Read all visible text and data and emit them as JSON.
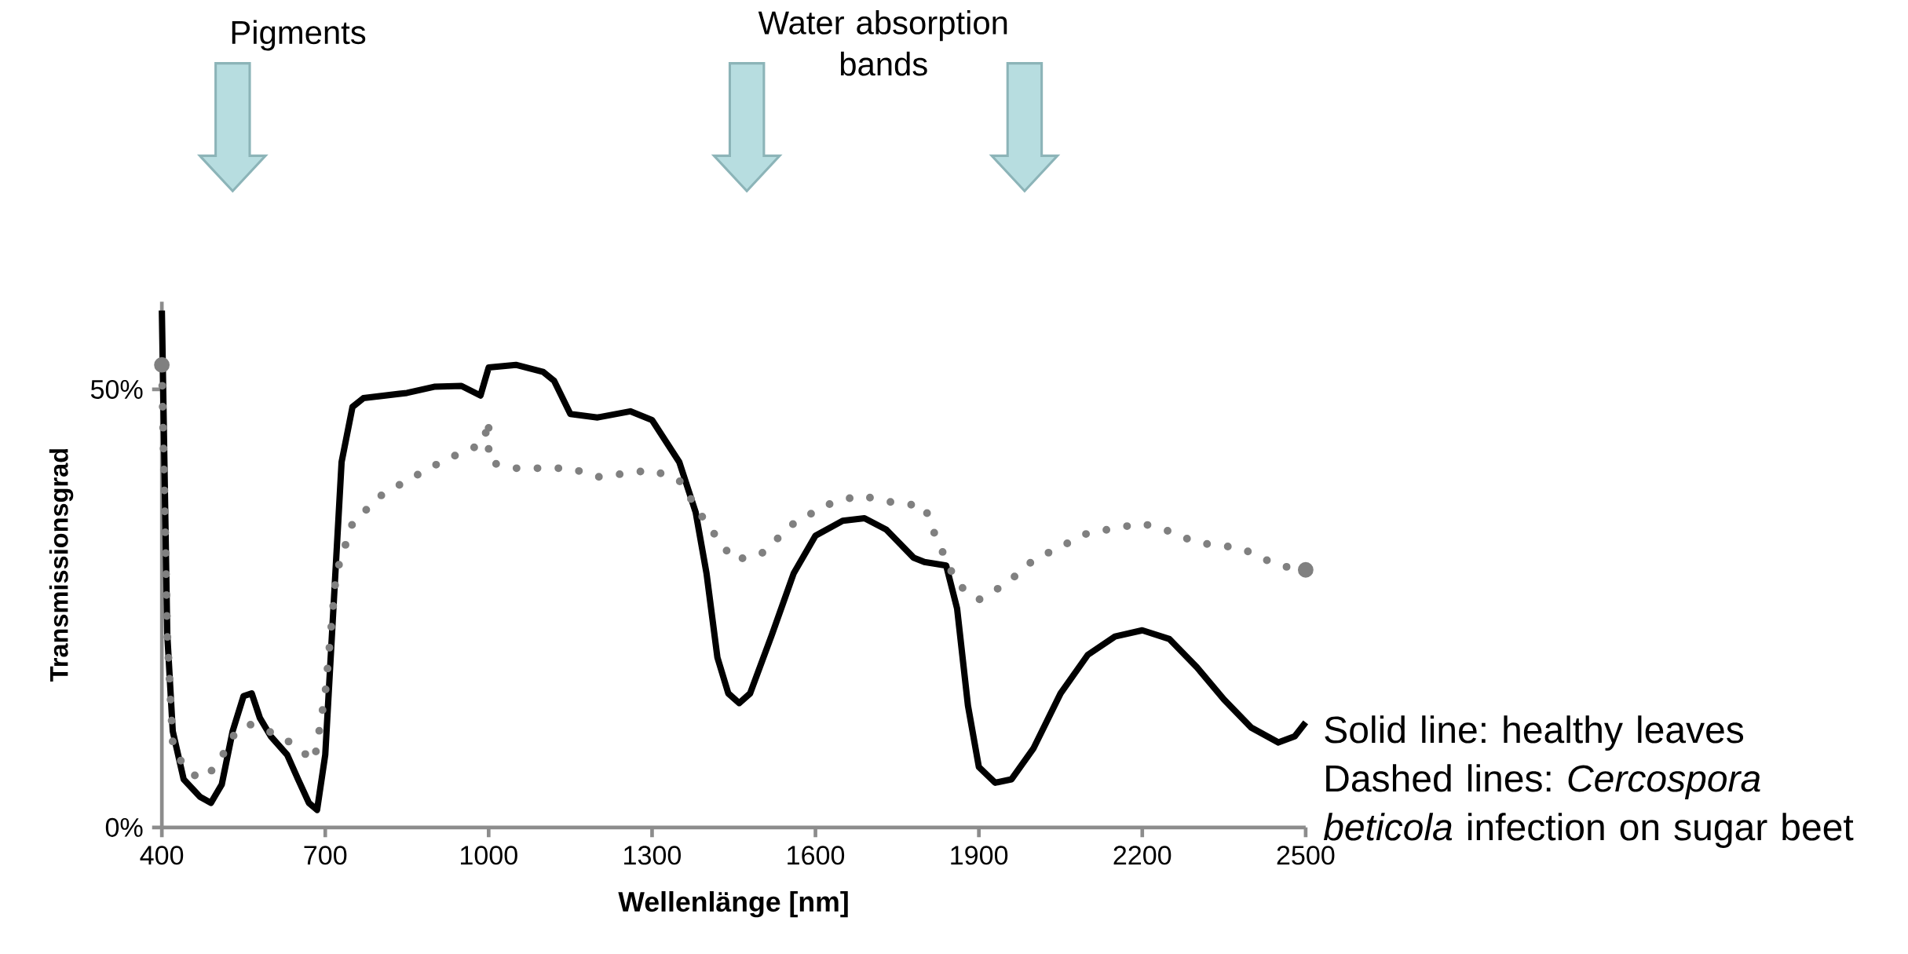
{
  "chart_data": {
    "type": "line",
    "xlabel": "Wellenlänge [nm]",
    "ylabel": "Transmissionsgrad",
    "xlim": [
      400,
      2500
    ],
    "xticks": [
      400,
      700,
      1000,
      1300,
      1600,
      1900,
      2200,
      2500
    ],
    "ylim": [
      0,
      60
    ],
    "yticks": [
      {
        "value": 0,
        "label": "0%"
      },
      {
        "value": 50,
        "label": "50%"
      }
    ],
    "annotations": [
      "Pigments",
      "Water absorption bands",
      "Solid line: healthy leaves",
      "Dashed lines: *Cercospora beticola* infection on sugar beet"
    ],
    "series": [
      {
        "color": "#000000",
        "line_style": "solid",
        "x": [
          400,
          410,
          420,
          440,
          470,
          490,
          510,
          530,
          550,
          565,
          580,
          600,
          630,
          650,
          670,
          685,
          700,
          715,
          730,
          750,
          770,
          850,
          900,
          950,
          985,
          1000,
          1050,
          1100,
          1120,
          1150,
          1200,
          1260,
          1300,
          1350,
          1380,
          1400,
          1420,
          1440,
          1460,
          1480,
          1520,
          1560,
          1600,
          1650,
          1690,
          1730,
          1780,
          1800,
          1840,
          1860,
          1880,
          1900,
          1930,
          1960,
          2000,
          2050,
          2100,
          2150,
          2200,
          2250,
          2300,
          2350,
          2400,
          2450,
          2480,
          2500
        ],
        "values": [
          59,
          22,
          11,
          5.5,
          3.5,
          2.8,
          4.9,
          11,
          15,
          15.3,
          12.5,
          10.4,
          8.3,
          5.5,
          2.8,
          2,
          8.3,
          25,
          41.7,
          48,
          49,
          49.6,
          50.3,
          50.4,
          49.3,
          52.5,
          52.8,
          52,
          51,
          47.2,
          46.8,
          47.5,
          46.5,
          41.7,
          36,
          29,
          19.4,
          15.3,
          14.2,
          15.3,
          22,
          29,
          33.3,
          35,
          35.3,
          34,
          30.8,
          30.3,
          29.9,
          25,
          13.9,
          6.9,
          5.1,
          5.5,
          9,
          15.3,
          19.7,
          21.8,
          22.5,
          21.5,
          18.3,
          14.6,
          11.4,
          9.7,
          10.4,
          12
        ]
      },
      {
        "color": "#808080",
        "line_style": "dotted",
        "x": [
          400,
          410,
          420,
          440,
          470,
          500,
          530,
          560,
          590,
          620,
          650,
          680,
          700,
          720,
          750,
          800,
          850,
          900,
          950,
          990,
          1000,
          1000,
          1050,
          1150,
          1200,
          1300,
          1350,
          1400,
          1450,
          1500,
          1560,
          1620,
          1680,
          1750,
          1800,
          1820,
          1860,
          1900,
          1950,
          2000,
          2100,
          2200,
          2250,
          2300,
          2380,
          2450,
          2500
        ],
        "values": [
          52.8,
          22,
          9.7,
          6.9,
          5.5,
          6.9,
          10.4,
          11.8,
          11.1,
          10.4,
          9,
          7.6,
          15.3,
          29,
          34.7,
          37.8,
          39.6,
          41.3,
          42.8,
          43.8,
          46.5,
          41.7,
          41,
          41,
          40,
          40.8,
          39.6,
          34.7,
          30.5,
          31.2,
          34.7,
          36.8,
          37.9,
          37,
          36.7,
          33.3,
          27.8,
          26,
          27.8,
          30.5,
          33.6,
          34.7,
          33.8,
          32.5,
          31.9,
          29.9,
          29.4
        ]
      }
    ]
  }
}
